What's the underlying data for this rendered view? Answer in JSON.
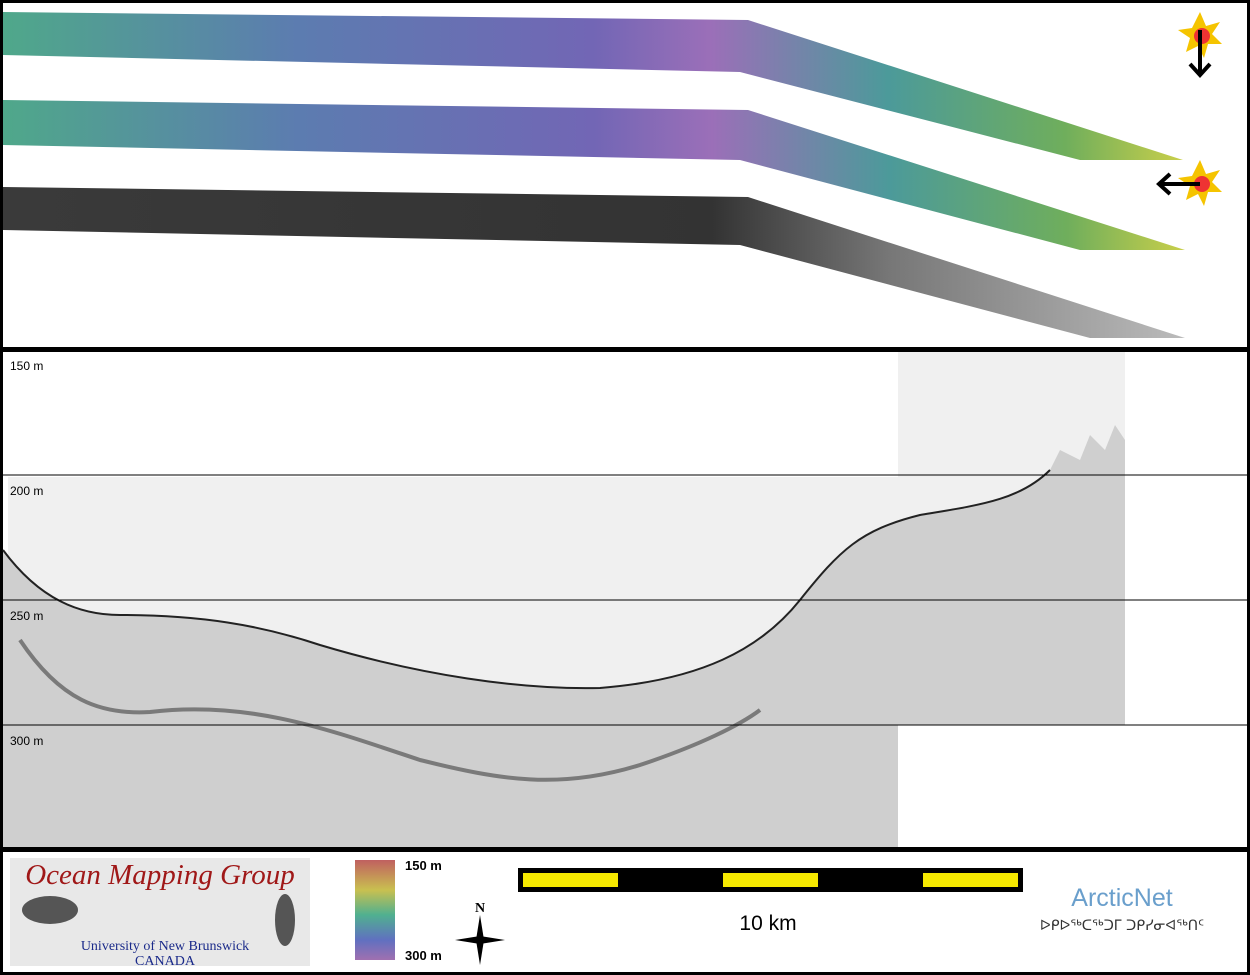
{
  "profile": {
    "depth_labels": [
      "150 m",
      "200 m",
      "250 m",
      "300 m"
    ]
  },
  "logo": {
    "title": "Ocean Mapping Group",
    "university": "University of New Brunswick",
    "country": "CANADA"
  },
  "colorbar": {
    "top_label": "150 m",
    "bottom_label": "300 m"
  },
  "north_arrow": {
    "label": "N"
  },
  "scale_bar": {
    "label": "10 km"
  },
  "partner": {
    "name": "ArcticNet",
    "syllabics": "ᐅᑭᐅᖅᑕᖅᑐᒥ ᑐᑭᓯᓂᐊᖅᑎᑦ"
  }
}
